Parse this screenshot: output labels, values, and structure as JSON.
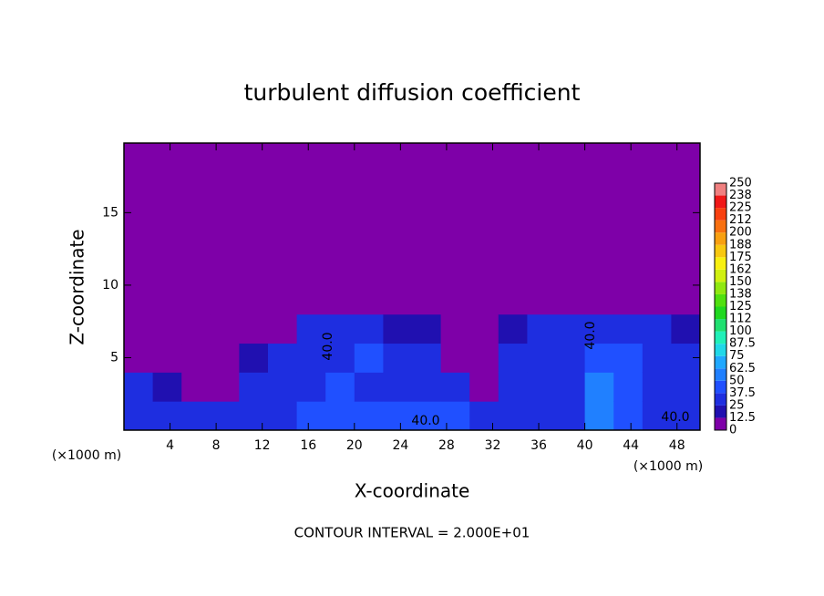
{
  "chart_data": {
    "type": "heatmap",
    "title": "turbulent diffusion coefficient",
    "x_label": "X-coordinate",
    "y_label": "Z-coordinate",
    "x_unit": "(×1000 m)",
    "x_unit_right": "(×1000 m)",
    "footnote": "CONTOUR INTERVAL = 2.000E+01",
    "xlim": [
      0,
      50
    ],
    "ylim": [
      0,
      19.8
    ],
    "xticks": [
      4,
      8,
      12,
      16,
      20,
      24,
      28,
      32,
      36,
      40,
      44,
      48
    ],
    "yticks": [
      5,
      10,
      15
    ],
    "x_edges": [
      0,
      2.5,
      5,
      7.5,
      10,
      12.5,
      15,
      17.5,
      20,
      22.5,
      25,
      27.5,
      30,
      32.5,
      35,
      37.5,
      40,
      42.5,
      45,
      47.5,
      50
    ],
    "z_edges": [
      0,
      2,
      4,
      6,
      8,
      19.8
    ],
    "values": [
      [
        30,
        25,
        12,
        0,
        0
      ],
      [
        25,
        15,
        0,
        0,
        0
      ],
      [
        25,
        5,
        0,
        0,
        0
      ],
      [
        30,
        10,
        5,
        0,
        0
      ],
      [
        30,
        25,
        20,
        5,
        0
      ],
      [
        30,
        30,
        25,
        5,
        0
      ],
      [
        40,
        35,
        30,
        25,
        0
      ],
      [
        40,
        40,
        35,
        25,
        0
      ],
      [
        40,
        35,
        40,
        25,
        0
      ],
      [
        45,
        35,
        35,
        20,
        0
      ],
      [
        40,
        35,
        35,
        15,
        0
      ],
      [
        40,
        30,
        10,
        0,
        0
      ],
      [
        30,
        10,
        0,
        0,
        0
      ],
      [
        35,
        30,
        25,
        20,
        0
      ],
      [
        35,
        35,
        35,
        30,
        0
      ],
      [
        35,
        35,
        35,
        35,
        5
      ],
      [
        60,
        50,
        45,
        35,
        10
      ],
      [
        40,
        40,
        40,
        30,
        0
      ],
      [
        35,
        30,
        35,
        25,
        0
      ],
      [
        30,
        30,
        30,
        20,
        0
      ]
    ],
    "contour_labels": [
      "40.0",
      "40.0",
      "40.0",
      "40.0"
    ],
    "colorbar": {
      "levels": [
        0,
        12.5,
        25,
        37.5,
        50,
        62.5,
        75,
        87.5,
        100,
        {
          "value": 112.5,
          "label": "112"
        },
        125,
        {
          "value": 137.5,
          "label": "138"
        },
        150,
        {
          "value": 162.5,
          "label": "162"
        },
        175,
        {
          "value": 187.5,
          "label": "188"
        },
        200,
        {
          "value": 212.5,
          "label": "212"
        },
        225,
        {
          "value": 237.5,
          "label": "238"
        },
        250
      ],
      "colors": [
        "#7e00a8",
        "#2010b0",
        "#1e2ee0",
        "#2050ff",
        "#2080ff",
        "#20a8ff",
        "#20d8e8",
        "#20f0b8",
        "#20e070",
        "#20d820",
        "#50e010",
        "#90e810",
        "#d0f010",
        "#f8f010",
        "#f8c810",
        "#f8a010",
        "#f87010",
        "#f84010",
        "#f01818",
        "#f08080"
      ]
    }
  }
}
